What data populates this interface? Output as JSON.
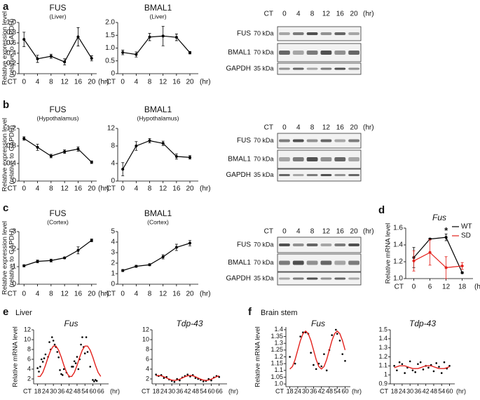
{
  "panel_letters": [
    "a",
    "b",
    "c",
    "d",
    "e",
    "f"
  ],
  "section_labels": [
    "Liver",
    "Brain stem"
  ],
  "blots": [
    {
      "header": "CT",
      "lanes": [
        "0",
        "4",
        "8",
        "12",
        "16",
        "20"
      ],
      "unit": "(hr)",
      "rows": [
        {
          "name": "FUS",
          "size": "70 kDa"
        },
        {
          "name": "BMAL1",
          "size": "70 kDa"
        },
        {
          "name": "GAPDH",
          "size": "35 kDa"
        }
      ]
    },
    {
      "header": "CT",
      "lanes": [
        "0",
        "4",
        "8",
        "12",
        "16",
        "20"
      ],
      "unit": "(hr)",
      "rows": [
        {
          "name": "FUS",
          "size": "70 kDa"
        },
        {
          "name": "BMAL1",
          "size": "70 kDa"
        },
        {
          "name": "GAPDH",
          "size": "35 kDa"
        }
      ]
    },
    {
      "header": "CT",
      "lanes": [
        "0",
        "4",
        "8",
        "12",
        "16",
        "20"
      ],
      "unit": "(hr)",
      "rows": [
        {
          "name": "FUS",
          "size": "70 kDa"
        },
        {
          "name": "BMAL1",
          "size": "70 kDa"
        },
        {
          "name": "GAPDH",
          "size": "35 kDa"
        }
      ]
    }
  ],
  "chart_data": [
    {
      "type": "line",
      "title": "FUS",
      "subtitle": "(Liver)",
      "ylabel": [
        "Relative expression level",
        "(relative to GAPDH)"
      ],
      "x": [
        0,
        4,
        8,
        12,
        16,
        20
      ],
      "values": [
        0.67,
        0.29,
        0.34,
        0.23,
        0.72,
        0.3
      ],
      "errors": [
        0.14,
        0.07,
        0.04,
        0.06,
        0.18,
        0.05
      ],
      "color": "#000000",
      "xlim": [
        -1.5,
        21.5
      ],
      "xticks": [
        0,
        4,
        8,
        12,
        16,
        20
      ],
      "x_prefix": "CT",
      "x_unit": "(hr)",
      "ylim": [
        0,
        1
      ],
      "yticks": [
        0,
        0.2,
        0.4,
        0.6,
        0.8,
        {
          "value": 1,
          "label": "1.0"
        }
      ]
    },
    {
      "type": "line",
      "title": "BMAL1",
      "subtitle": "(Liver)",
      "x": [
        0,
        4,
        8,
        12,
        16,
        20
      ],
      "values": [
        0.83,
        0.75,
        1.43,
        1.47,
        1.42,
        0.82
      ],
      "errors": [
        0.09,
        0.1,
        0.14,
        0.38,
        0.13,
        0.05
      ],
      "color": "#000000",
      "xlim": [
        -1.5,
        22.5
      ],
      "xticks": [
        0,
        4,
        8,
        12,
        16,
        20
      ],
      "x_prefix": "CT",
      "x_unit": "(hr)",
      "ylim": [
        0,
        2
      ],
      "yticks": [
        0,
        0.5,
        {
          "value": 1,
          "label": "1.0"
        },
        1.5,
        {
          "value": 2,
          "label": "2.0"
        }
      ]
    },
    {
      "type": "line",
      "title": "FUS",
      "subtitle": "(Hypothalamus)",
      "ylabel": [
        "Relative expression level",
        "(relative to GAPDH)"
      ],
      "x": [
        0,
        4,
        8,
        12,
        16,
        20
      ],
      "values": [
        0.97,
        0.77,
        0.57,
        0.67,
        0.73,
        0.43
      ],
      "errors": [
        0.04,
        0.07,
        0.04,
        0.04,
        0.05,
        0.03
      ],
      "color": "#000000",
      "xlim": [
        -1.5,
        21.5
      ],
      "xticks": [
        0,
        4,
        8,
        12,
        16,
        20
      ],
      "x_prefix": "CT",
      "x_unit": "(hr)",
      "ylim": [
        0,
        1.2
      ],
      "yticks": [
        0,
        0.4,
        0.8,
        1.2
      ]
    },
    {
      "type": "line",
      "title": "BMAL1",
      "subtitle": "(Hypothalamus)",
      "x": [
        0,
        4,
        8,
        12,
        16,
        20
      ],
      "values": [
        2.7,
        8.0,
        9.2,
        8.6,
        5.6,
        5.4
      ],
      "errors": [
        1.5,
        1.0,
        0.5,
        0.5,
        0.6,
        0.4
      ],
      "color": "#000000",
      "xlim": [
        -1.5,
        22.5
      ],
      "xticks": [
        0,
        4,
        8,
        12,
        16,
        20
      ],
      "x_prefix": "CT",
      "x_unit": "(hr)",
      "ylim": [
        0,
        12
      ],
      "yticks": [
        0,
        4,
        8,
        12
      ]
    },
    {
      "type": "line",
      "title": "FUS",
      "subtitle": "(Cortex)",
      "ylabel": [
        "Relative expression level",
        "(relative to GAPDH)"
      ],
      "x": [
        0,
        4,
        8,
        12,
        16,
        20
      ],
      "values": [
        1.05,
        1.3,
        1.35,
        1.5,
        1.93,
        2.5
      ],
      "errors": [
        0.06,
        0.08,
        0.08,
        0.05,
        0.2,
        0.08
      ],
      "color": "#000000",
      "xlim": [
        -1.5,
        21.5
      ],
      "xticks": [
        0,
        4,
        8,
        12,
        16,
        20
      ],
      "x_prefix": "CT",
      "x_unit": "(hr)",
      "ylim": [
        0,
        3
      ],
      "yticks": [
        0,
        1,
        2,
        3
      ]
    },
    {
      "type": "line",
      "title": "BMAL1",
      "subtitle": "(Cortex)",
      "x": [
        0,
        4,
        8,
        12,
        16,
        20
      ],
      "values": [
        1.3,
        1.7,
        1.85,
        2.6,
        3.5,
        3.9
      ],
      "errors": [
        0.1,
        0.1,
        0.1,
        0.2,
        0.3,
        0.25
      ],
      "color": "#000000",
      "xlim": [
        -1.5,
        22.5
      ],
      "xticks": [
        0,
        4,
        8,
        12,
        16,
        20
      ],
      "x_prefix": "CT",
      "x_unit": "(hr)",
      "ylim": [
        0,
        5
      ],
      "yticks": [
        0,
        1,
        2,
        3,
        4,
        5
      ]
    },
    {
      "type": "line",
      "title": "Fus",
      "title_italic": true,
      "ylabel": "Relative mRNA level",
      "x": [
        0,
        6,
        12,
        18
      ],
      "series": [
        {
          "name": "WT",
          "color": "#000000",
          "values": [
            1.25,
            1.47,
            1.49,
            1.07
          ],
          "errors": [
            0.12,
            0.01,
            0.04,
            0.01
          ]
        },
        {
          "name": "SD",
          "color": "#e3211c",
          "values": [
            1.21,
            1.31,
            1.13,
            1.15
          ],
          "errors": [
            0.12,
            0.15,
            0.13,
            0.04
          ]
        }
      ],
      "annotations": [
        {
          "text": "*",
          "x": 12,
          "y": 1.56
        }
      ],
      "xlim": [
        -3,
        22
      ],
      "xticks": [
        0,
        6,
        12,
        18
      ],
      "x_prefix": "CT",
      "x_unit": "(hr)",
      "ylim": [
        1,
        1.6
      ],
      "yticks": [
        {
          "value": 1,
          "label": "1.0"
        },
        1.2,
        1.4,
        1.6
      ],
      "legend": "top-right"
    },
    {
      "type": "scatter",
      "title": "Fus",
      "title_italic": true,
      "ylabel": "Relative mRNA level",
      "points": {
        "color": "#000000",
        "x": [
          18,
          19,
          20,
          21,
          22,
          23,
          24,
          26,
          27,
          28,
          29,
          30,
          31,
          32,
          33,
          34,
          35,
          36,
          37,
          38,
          40,
          42,
          44,
          45,
          46,
          47,
          48,
          49,
          50,
          51,
          52,
          53,
          54,
          55,
          56,
          58,
          60,
          61,
          62,
          63
        ],
        "y": [
          4.2,
          3.5,
          4.5,
          6,
          5.5,
          6.2,
          7,
          6.5,
          9.5,
          8,
          10.5,
          9.8,
          9,
          8.5,
          7.5,
          6.4,
          3.8,
          3,
          2.8,
          4,
          3.3,
          2.5,
          4.5,
          4.5,
          5.6,
          5.2,
          6.5,
          4,
          6,
          9,
          10.5,
          8.5,
          7.2,
          10.5,
          7.5,
          4.5,
          1.8,
          1.5,
          1.8,
          1.6
        ]
      },
      "fit": {
        "color": "#e3211c",
        "x": [
          18,
          20,
          22,
          24,
          26,
          28,
          30,
          32,
          34,
          36,
          38,
          40,
          42,
          44,
          46,
          48,
          50,
          52,
          54,
          56,
          58,
          60,
          62,
          64,
          66
        ],
        "values": [
          2.51,
          2.51,
          3.34,
          4.77,
          6.43,
          7.86,
          8.69,
          8.69,
          7.86,
          6.43,
          4.77,
          3.34,
          2.51,
          2.51,
          3.34,
          4.77,
          6.43,
          7.86,
          8.69,
          8.69,
          7.86,
          6.43,
          4.77,
          3.34,
          2.51
        ]
      },
      "xlim": [
        15,
        72
      ],
      "xticks": [
        18,
        24,
        30,
        36,
        42,
        48,
        54,
        60,
        66
      ],
      "x_prefix": "CT",
      "x_unit": "(hr)",
      "ylim": [
        1,
        12
      ],
      "yticks": [
        2,
        4,
        6,
        8,
        10,
        12
      ]
    },
    {
      "type": "scatter",
      "title": "Tdp-43",
      "title_italic": true,
      "points": {
        "color": "#000000",
        "x": [
          18,
          20,
          22,
          24,
          26,
          28,
          30,
          32,
          34,
          36,
          38,
          40,
          42,
          44,
          46,
          48,
          50,
          52,
          54,
          56,
          58,
          60,
          62,
          64,
          66
        ],
        "y": [
          2.9,
          2.6,
          2.8,
          2.2,
          2.4,
          1.9,
          1.6,
          1.4,
          2.0,
          1.7,
          2.3,
          2.6,
          2.9,
          2.5,
          2.8,
          2.2,
          2.0,
          1.8,
          1.5,
          1.6,
          2.0,
          1.7,
          2.3,
          2.6,
          2.4
        ]
      },
      "fit": {
        "color": "#e3211c",
        "x": [
          18,
          20,
          22,
          24,
          26,
          28,
          30,
          32,
          34,
          36,
          38,
          40,
          42,
          44,
          46,
          48,
          50,
          52,
          54,
          56,
          58,
          60,
          62,
          64,
          66
        ],
        "values": [
          2.63,
          2.7,
          2.63,
          2.45,
          2.2,
          1.95,
          1.77,
          1.7,
          1.77,
          1.95,
          2.2,
          2.45,
          2.63,
          2.7,
          2.63,
          2.45,
          2.2,
          1.95,
          1.77,
          1.7,
          1.77,
          1.95,
          2.2,
          2.45,
          2.63
        ]
      },
      "xlim": [
        15,
        72
      ],
      "xticks": [
        18,
        24,
        30,
        36,
        42,
        48,
        54,
        60,
        66
      ],
      "x_prefix": "CT",
      "x_unit": "(hr)",
      "ylim": [
        1,
        12
      ],
      "yticks": [
        2,
        4,
        6,
        8,
        10,
        12
      ]
    },
    {
      "type": "scatter",
      "title": "Fus",
      "title_italic": true,
      "ylabel": "Relative mRNA level",
      "points": {
        "color": "#000000",
        "x": [
          18,
          22,
          26,
          28,
          30,
          32,
          34,
          36,
          38,
          40,
          42,
          44,
          46,
          48,
          50,
          53,
          54,
          56,
          58,
          60
        ],
        "y": [
          1.2,
          1.15,
          1.35,
          1.38,
          1.38,
          1.37,
          1.23,
          1.14,
          1.11,
          1.15,
          1.13,
          1.22,
          1.1,
          1.25,
          1.36,
          1.4,
          1.37,
          1.32,
          1.22,
          1.17
        ]
      },
      "fit": {
        "color": "#e3211c",
        "x": [
          18,
          20,
          22,
          24,
          26,
          28,
          30,
          32,
          34,
          36,
          38,
          40,
          42,
          44,
          46,
          48,
          50,
          52,
          54,
          56,
          58,
          60
        ],
        "values": [
          1.11,
          1.129,
          1.18,
          1.25,
          1.32,
          1.371,
          1.39,
          1.371,
          1.32,
          1.25,
          1.18,
          1.129,
          1.11,
          1.129,
          1.18,
          1.25,
          1.32,
          1.371,
          1.39,
          1.371,
          1.32,
          1.25
        ]
      },
      "xlim": [
        15,
        64
      ],
      "xticks": [
        18,
        24,
        30,
        36,
        42,
        48,
        54,
        60
      ],
      "x_prefix": "CT",
      "x_unit": "(hr)",
      "ylim": [
        0.98,
        1.42
      ],
      "yticks": [
        {
          "value": 1,
          "label": "1.0"
        },
        1.05,
        1.1,
        1.15,
        1.2,
        1.25,
        1.3,
        1.35,
        1.4
      ]
    },
    {
      "type": "scatter",
      "title": "Tdp-43",
      "title_italic": true,
      "points": {
        "color": "#000000",
        "x": [
          18,
          20,
          22,
          24,
          26,
          28,
          30,
          32,
          34,
          36,
          38,
          40,
          42,
          44,
          46,
          48,
          50,
          52,
          54,
          56,
          58,
          60
        ],
        "y": [
          1.1,
          1.05,
          1.14,
          1.12,
          1.02,
          1.08,
          1.15,
          1.05,
          1.03,
          1.12,
          1.14,
          1.06,
          1.1,
          1.08,
          1.11,
          1.04,
          1.13,
          1.09,
          1.02,
          1.14,
          1.07,
          1.1
        ]
      },
      "fit": {
        "color": "#e3211c",
        "x": [
          18,
          20,
          22,
          24,
          26,
          28,
          30,
          32,
          34,
          36,
          38,
          40,
          42,
          44,
          46,
          48,
          50,
          52,
          54,
          56,
          58,
          60
        ],
        "values": [
          1.08,
          1.09,
          1.1,
          1.1,
          1.1,
          1.09,
          1.08,
          1.07,
          1.07,
          1.07,
          1.08,
          1.09,
          1.1,
          1.1,
          1.1,
          1.09,
          1.08,
          1.07,
          1.07,
          1.07,
          1.08,
          1.09
        ]
      },
      "xlim": [
        15,
        64
      ],
      "xticks": [
        18,
        24,
        30,
        36,
        42,
        48,
        54,
        60
      ],
      "x_prefix": "CT",
      "x_unit": "(hr)",
      "ylim": [
        0.9,
        1.5
      ],
      "yticks": [
        0.9,
        1,
        1.1,
        1.2,
        1.3,
        1.4,
        1.5
      ]
    }
  ]
}
